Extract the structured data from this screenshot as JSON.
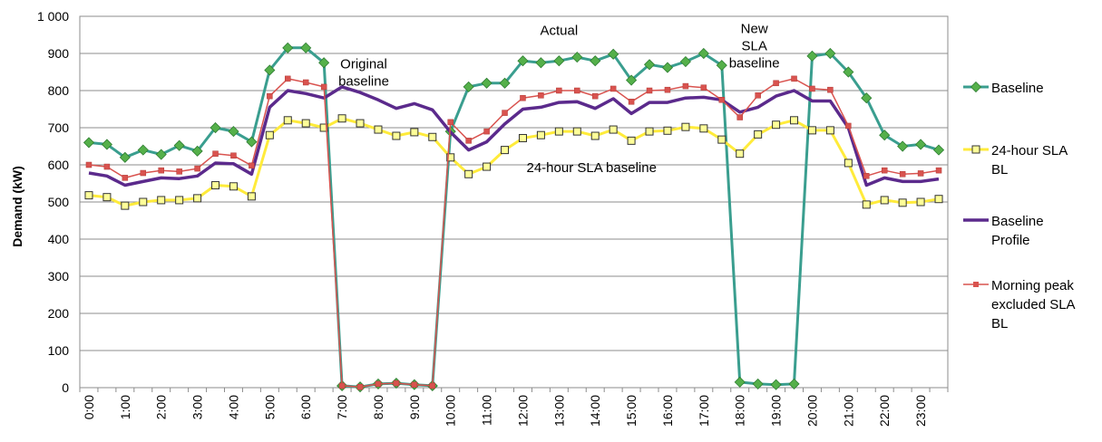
{
  "chart_data": {
    "type": "line",
    "title": "",
    "xlabel": "",
    "ylabel": "Demand (kW)",
    "ylim": [
      0,
      1000
    ],
    "yticks": [
      "0",
      "100",
      "200",
      "300",
      "400",
      "500",
      "600",
      "700",
      "800",
      "900",
      "1 000"
    ],
    "xticks": [
      "0:00",
      "1:00",
      "2:00",
      "3:00",
      "4:00",
      "5:00",
      "6:00",
      "7:00",
      "8:00",
      "9:00",
      "10:00",
      "11:00",
      "12:00",
      "13:00",
      "14:00",
      "15:00",
      "16:00",
      "17:00",
      "18:00",
      "19:00",
      "20:00",
      "21:00",
      "22:00",
      "23:00"
    ],
    "x_interval_hours": 0.5,
    "grid": "horizontal",
    "legend_position": "right",
    "series": [
      {
        "name": "Baseline",
        "color": "#3a9e8f",
        "marker": "diamond",
        "marker_fill": "#55b04a",
        "values": [
          660,
          655,
          620,
          640,
          628,
          652,
          637,
          700,
          690,
          662,
          855,
          915,
          915,
          875,
          5,
          2,
          10,
          12,
          8,
          5,
          690,
          810,
          820,
          820,
          880,
          875,
          880,
          890,
          880,
          898,
          828,
          870,
          862,
          878,
          900,
          868,
          15,
          10,
          8,
          10,
          893,
          900,
          850,
          780,
          680,
          650,
          655,
          640
        ]
      },
      {
        "name": "24-hour SLA BL",
        "color": "#ffeb3b",
        "marker": "square",
        "marker_fill": "#ffff99",
        "values": [
          518,
          513,
          490,
          500,
          505,
          505,
          510,
          545,
          542,
          515,
          680,
          720,
          712,
          700,
          725,
          712,
          695,
          678,
          688,
          675,
          620,
          575,
          595,
          640,
          672,
          680,
          690,
          690,
          678,
          695,
          665,
          690,
          692,
          702,
          698,
          668,
          630,
          682,
          708,
          720,
          693,
          693,
          605,
          493,
          505,
          498,
          500,
          508
        ]
      },
      {
        "name": "Baseline Profile",
        "color": "#5b2a8c",
        "marker": "none",
        "values": [
          578,
          570,
          545,
          555,
          565,
          563,
          570,
          605,
          603,
          575,
          755,
          800,
          792,
          780,
          810,
          795,
          775,
          752,
          765,
          748,
          688,
          640,
          662,
          710,
          750,
          755,
          768,
          770,
          752,
          778,
          738,
          768,
          768,
          780,
          782,
          775,
          742,
          755,
          785,
          800,
          772,
          772,
          700,
          545,
          565,
          555,
          555,
          562
        ]
      },
      {
        "name": "Morning peak excluded SLA BL",
        "color": "#d9534f",
        "marker": "square",
        "marker_fill": "#d9534f",
        "values": [
          600,
          595,
          565,
          578,
          585,
          582,
          590,
          630,
          625,
          598,
          785,
          832,
          822,
          810,
          5,
          2,
          10,
          12,
          8,
          5,
          715,
          665,
          690,
          740,
          780,
          787,
          800,
          800,
          785,
          805,
          770,
          800,
          802,
          812,
          808,
          775,
          728,
          787,
          820,
          832,
          805,
          802,
          705,
          570,
          585,
          575,
          577,
          585
        ]
      }
    ],
    "legend_labels": [
      [
        "Baseline"
      ],
      [
        "24-hour SLA",
        "BL"
      ],
      [
        "Baseline",
        "Profile"
      ],
      [
        "Morning peak",
        "excluded SLA",
        "BL"
      ]
    ],
    "annotations": [
      {
        "lines": [
          "Original",
          "baseline"
        ],
        "x": 7.6,
        "y": 860
      },
      {
        "lines": [
          "Actual"
        ],
        "x": 13.0,
        "y": 950
      },
      {
        "lines": [
          "New",
          "SLA",
          "baseline"
        ],
        "x": 18.4,
        "y": 955
      },
      {
        "lines": [
          "24-hour SLA baseline"
        ],
        "x": 13.9,
        "y": 580
      }
    ]
  }
}
